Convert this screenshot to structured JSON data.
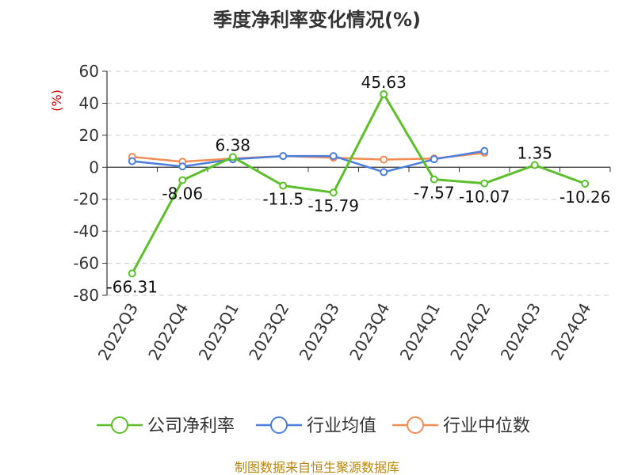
{
  "chart_data": {
    "type": "line",
    "title": "季度净利率变化情况(%)",
    "ylabel": "(%)",
    "categories": [
      "2022Q3",
      "2022Q4",
      "2023Q1",
      "2023Q2",
      "2023Q3",
      "2023Q4",
      "2024Q1",
      "2024Q2",
      "2024Q3",
      "2024Q4"
    ],
    "ylim": [
      -80,
      60
    ],
    "yticks": [
      60,
      40,
      20,
      0,
      -20,
      -40,
      -60,
      -80
    ],
    "grid": "horizontal-dashed",
    "legend_position": "bottom",
    "series": [
      {
        "name": "公司净利率",
        "color": "#5cbf2a",
        "values": [
          -66.31,
          -8.06,
          6.38,
          -11.5,
          -15.79,
          45.63,
          -7.57,
          -10.07,
          1.35,
          -10.26
        ],
        "labels": [
          "-66.31",
          "-8.06",
          "6.38",
          "-11.5",
          "-15.79",
          "45.63",
          "-7.57",
          "-10.07",
          "1.35",
          "-10.26"
        ]
      },
      {
        "name": "行业均值",
        "color": "#4a7fe0",
        "values": [
          3.8,
          0.5,
          5.0,
          7.0,
          7.0,
          -3.0,
          5.0,
          10.2,
          null,
          null
        ]
      },
      {
        "name": "行业中位数",
        "color": "#f28c55",
        "values": [
          6.5,
          3.5,
          5.5,
          7.0,
          6.0,
          4.8,
          5.5,
          9.0,
          null,
          null
        ]
      }
    ]
  },
  "source": "制图数据来自恒生聚源数据库"
}
